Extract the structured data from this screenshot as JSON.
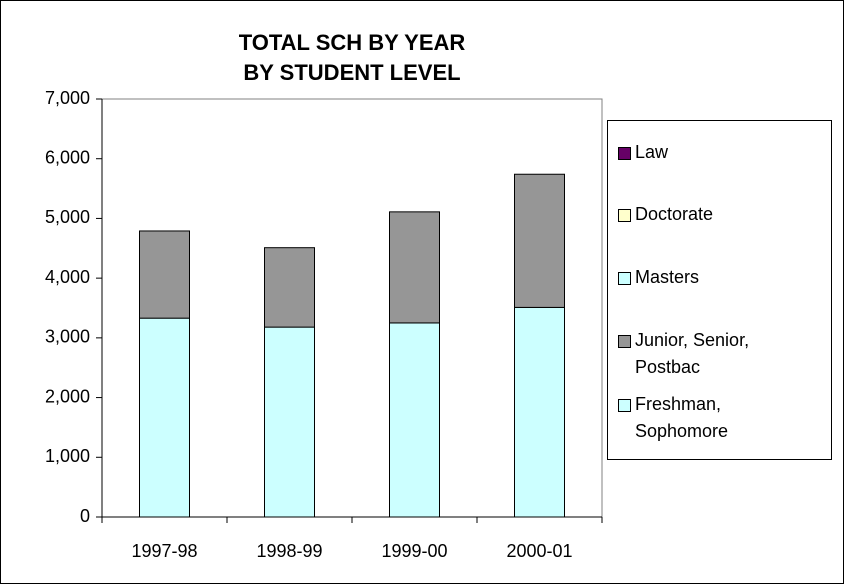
{
  "chart_data": {
    "type": "stacked_bar",
    "title": "TOTAL SCH BY YEAR",
    "subtitle": "BY STUDENT LEVEL",
    "categories": [
      "1997-98",
      "1998-99",
      "1999-00",
      "2000-01"
    ],
    "series": [
      {
        "name": "Freshman, Sophomore",
        "color": "#ccffff",
        "values": [
          3330,
          3180,
          3250,
          3510
        ]
      },
      {
        "name": "Junior, Senior, Postbac",
        "color": "#969696",
        "values": [
          1460,
          1330,
          1860,
          2230
        ]
      },
      {
        "name": "Masters",
        "color": "#ccffff",
        "values": [
          0,
          0,
          0,
          0
        ]
      },
      {
        "name": "Doctorate",
        "color": "#ffffcc",
        "values": [
          0,
          0,
          0,
          0
        ]
      },
      {
        "name": "Law",
        "color": "#660066",
        "values": [
          0,
          0,
          0,
          0
        ]
      }
    ],
    "ylim": [
      0,
      7000
    ],
    "yticks": [
      0,
      {
        "value": 1000,
        "label": "1,000"
      },
      {
        "value": 2000,
        "label": "2,000"
      },
      {
        "value": 3000,
        "label": "3,000"
      },
      {
        "value": 4000,
        "label": "4,000"
      },
      {
        "value": 5000,
        "label": "5,000"
      },
      {
        "value": 6000,
        "label": "6,000"
      },
      {
        "value": 7000,
        "label": "7,000"
      }
    ],
    "grid": false,
    "legend": "right"
  }
}
